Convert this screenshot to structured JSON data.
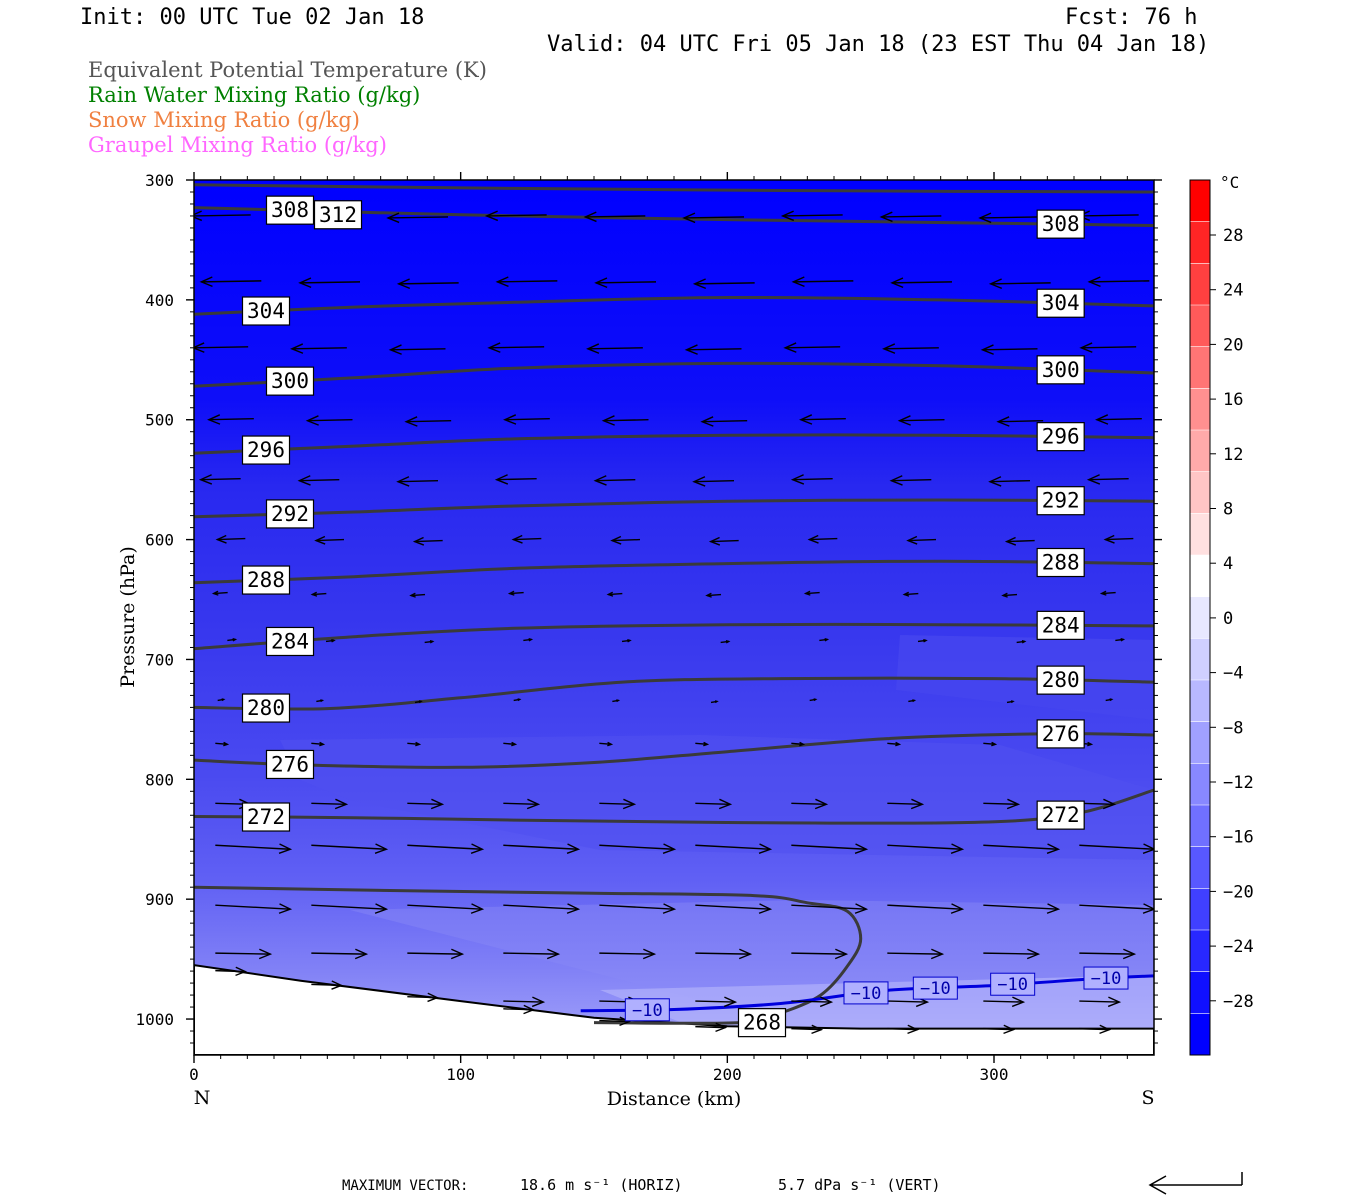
{
  "header": {
    "init": "Init: 00 UTC Tue 02 Jan 18",
    "fcst": "Fcst:   76 h",
    "valid": "Valid: 04 UTC Fri 05 Jan 18 (23 EST Thu 04 Jan 18)"
  },
  "legend": [
    {
      "label": "Equivalent Potential Temperature (K)",
      "color": "#555555"
    },
    {
      "label": "Rain Water Mixing Ratio (g/kg)",
      "color": "#008000"
    },
    {
      "label": "Snow Mixing Ratio (g/kg)",
      "color": "#f08040"
    },
    {
      "label": "Graupel Mixing Ratio (g/kg)",
      "color": "#ff66ff"
    }
  ],
  "chart_data": {
    "type": "cross-section",
    "xlabel": "Distance (km)",
    "ylabel": "Pressure (hPa)",
    "xlim": [
      0,
      360
    ],
    "ylim": [
      1030,
      300
    ],
    "x_ticks": [
      "0",
      "100",
      "200",
      "300"
    ],
    "y_ticks": [
      "300",
      "400",
      "500",
      "600",
      "700",
      "800",
      "900",
      "1000"
    ],
    "left_end_label": "N",
    "right_end_label": "S",
    "colorbar": {
      "unit": "°C",
      "tick_labels": [
        "28",
        "24",
        "20",
        "16",
        "12",
        "8",
        "4",
        "0",
        "−4",
        "−8",
        "−12",
        "−16",
        "−20",
        "−24",
        "−28"
      ]
    },
    "theta_e_contours": [
      {
        "value": 312,
        "label": "312",
        "points": [
          [
            0,
            304
          ],
          [
            120,
            307
          ],
          [
            240,
            309
          ],
          [
            360,
            310
          ]
        ]
      },
      {
        "value": 308,
        "label": "308",
        "points": [
          [
            0,
            323
          ],
          [
            100,
            329
          ],
          [
            200,
            333
          ],
          [
            300,
            336
          ],
          [
            360,
            338
          ]
        ]
      },
      {
        "value": 304,
        "label": "304",
        "points": [
          [
            0,
            412
          ],
          [
            60,
            406
          ],
          [
            120,
            402
          ],
          [
            200,
            398
          ],
          [
            280,
            400
          ],
          [
            360,
            405
          ]
        ]
      },
      {
        "value": 300,
        "label": "300",
        "points": [
          [
            0,
            472
          ],
          [
            60,
            465
          ],
          [
            120,
            457
          ],
          [
            200,
            453
          ],
          [
            280,
            455
          ],
          [
            360,
            461
          ]
        ]
      },
      {
        "value": 296,
        "label": "296",
        "points": [
          [
            0,
            528
          ],
          [
            60,
            522
          ],
          [
            120,
            516
          ],
          [
            200,
            513
          ],
          [
            280,
            513
          ],
          [
            360,
            515
          ]
        ]
      },
      {
        "value": 292,
        "label": "292",
        "points": [
          [
            0,
            581
          ],
          [
            60,
            577
          ],
          [
            120,
            572
          ],
          [
            200,
            568
          ],
          [
            280,
            567
          ],
          [
            360,
            568
          ]
        ]
      },
      {
        "value": 288,
        "label": "288",
        "points": [
          [
            0,
            636
          ],
          [
            60,
            631
          ],
          [
            120,
            624
          ],
          [
            200,
            620
          ],
          [
            280,
            618
          ],
          [
            360,
            620
          ]
        ]
      },
      {
        "value": 284,
        "label": "284",
        "points": [
          [
            0,
            691
          ],
          [
            60,
            681
          ],
          [
            120,
            674
          ],
          [
            200,
            671
          ],
          [
            280,
            671
          ],
          [
            360,
            672
          ]
        ]
      },
      {
        "value": 280,
        "label": "280",
        "points": [
          [
            0,
            740
          ],
          [
            50,
            741
          ],
          [
            100,
            732
          ],
          [
            160,
            719
          ],
          [
            220,
            716
          ],
          [
            300,
            716
          ],
          [
            360,
            719
          ]
        ]
      },
      {
        "value": 276,
        "label": "276",
        "points": [
          [
            0,
            784
          ],
          [
            40,
            788
          ],
          [
            100,
            790
          ],
          [
            150,
            786
          ],
          [
            200,
            777
          ],
          [
            260,
            766
          ],
          [
            320,
            762
          ],
          [
            360,
            763
          ]
        ]
      },
      {
        "value": 272,
        "label": "272",
        "points": [
          [
            0,
            831
          ],
          [
            60,
            832
          ],
          [
            120,
            834
          ],
          [
            200,
            836
          ],
          [
            290,
            836
          ],
          [
            330,
            829
          ],
          [
            360,
            809
          ]
        ]
      },
      {
        "value": 268,
        "label": "268",
        "points": [
          [
            0,
            890
          ],
          [
            80,
            893
          ],
          [
            150,
            895
          ],
          [
            210,
            897
          ],
          [
            230,
            903
          ],
          [
            245,
            910
          ],
          [
            250,
            933
          ],
          [
            245,
            956
          ],
          [
            235,
            980
          ],
          [
            220,
            995
          ],
          [
            205,
            1003
          ],
          [
            150,
            1003
          ]
        ]
      }
    ],
    "temperature_contours": [
      {
        "value": -10,
        "label": "−10",
        "points": [
          [
            145,
            993
          ],
          [
            180,
            992
          ],
          [
            220,
            987
          ],
          [
            260,
            976
          ],
          [
            300,
            972
          ],
          [
            340,
            966
          ],
          [
            360,
            964
          ]
        ]
      }
    ],
    "terrain_surface_hPa": [
      [
        0,
        955
      ],
      [
        40,
        968
      ],
      [
        100,
        985
      ],
      [
        150,
        999
      ],
      [
        200,
        1006
      ],
      [
        250,
        1008
      ],
      [
        360,
        1008
      ]
    ],
    "wind_vectors": [
      {
        "p": 330,
        "x": [
          10,
          50,
          90,
          130,
          170,
          210,
          250,
          290,
          330
        ]
      },
      {
        "p": 385,
        "x": [
          10,
          50,
          90,
          130,
          170,
          210,
          250,
          290,
          330
        ]
      },
      {
        "p": 440,
        "x": [
          10,
          50,
          90,
          130,
          170,
          210,
          250,
          290,
          330
        ]
      },
      {
        "p": 500,
        "x": [
          10,
          50,
          90,
          130,
          170,
          210,
          250,
          290,
          330
        ]
      }
    ],
    "max_vector": {
      "label": "MAXIMUM VECTOR:",
      "horiz": "18.6 m s⁻¹ (HORIZ)",
      "vert": "5.7 dPa s⁻¹ (VERT)"
    }
  }
}
